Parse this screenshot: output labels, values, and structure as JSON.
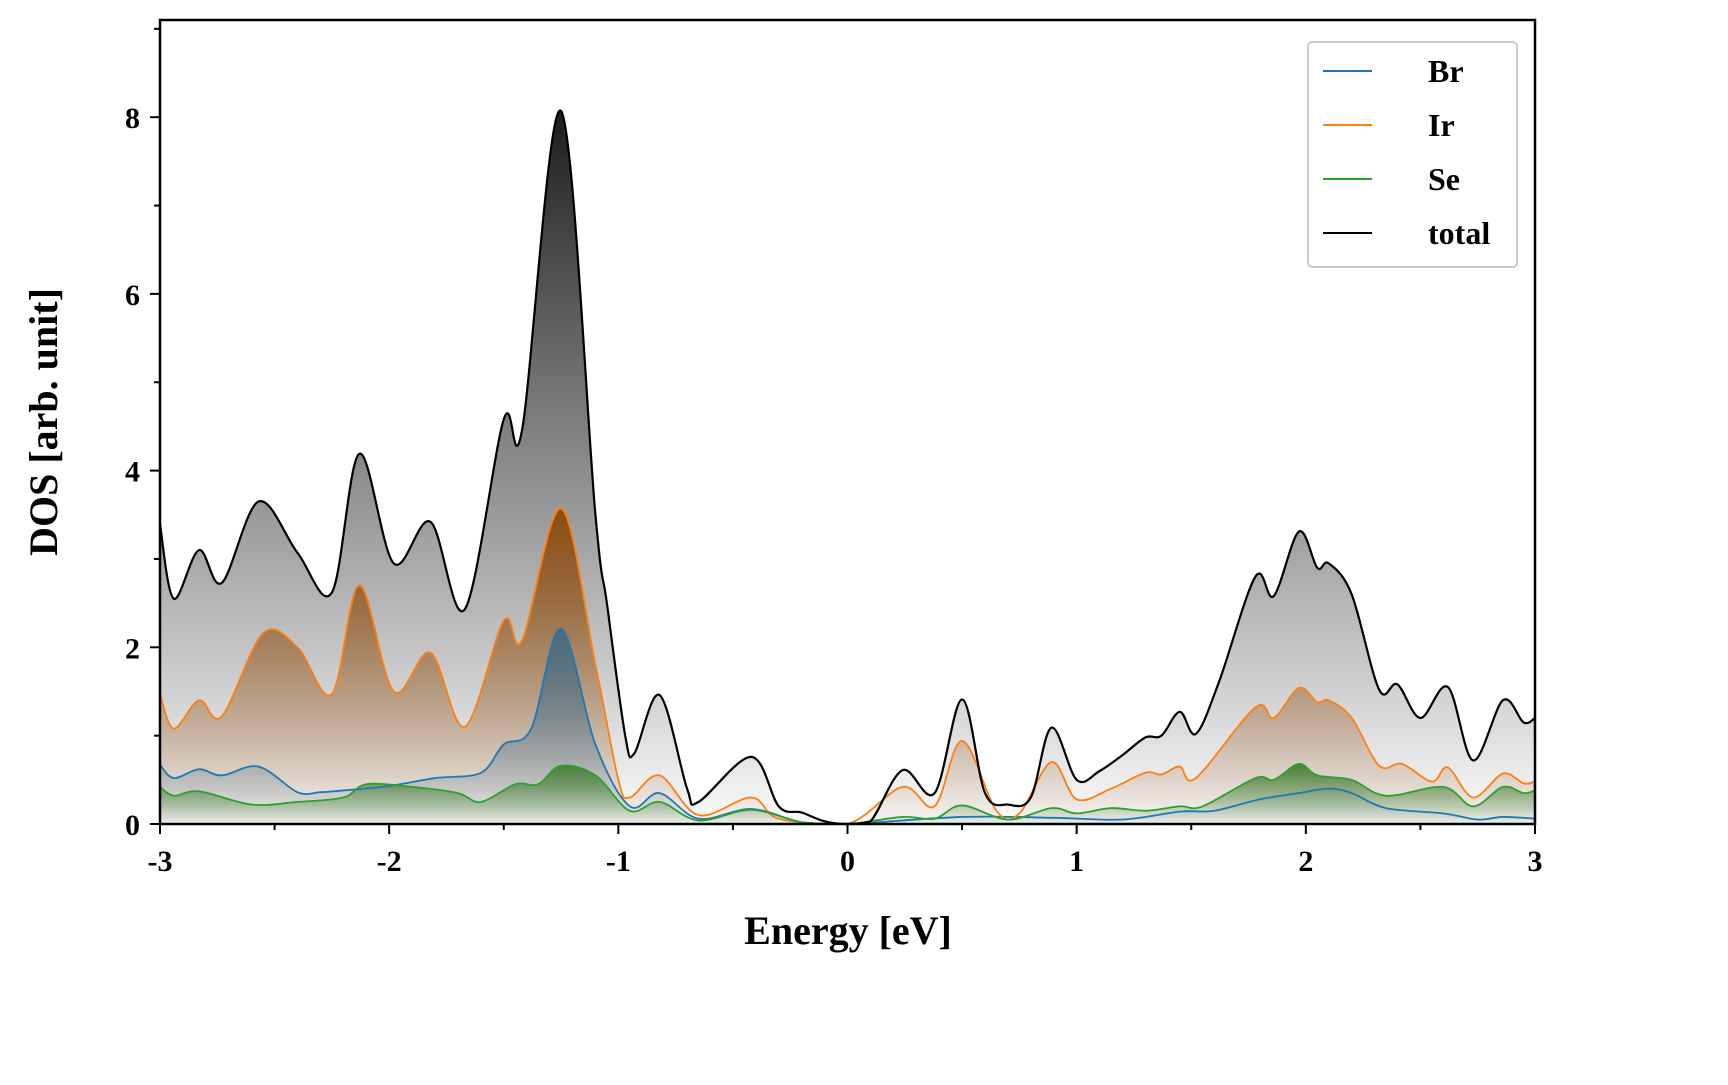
{
  "chart_data": {
    "type": "line",
    "title": "",
    "xlabel": "Energy [eV]",
    "ylabel": "DOS [arb. unit]",
    "xlim": [
      -3,
      3
    ],
    "ylim": [
      0,
      9.1
    ],
    "xticks": [
      -3,
      -2,
      -1,
      0,
      1,
      2,
      3
    ],
    "xtick_labels": [
      "-3",
      "-2",
      "-1",
      "0",
      "1",
      "2",
      "3"
    ],
    "yticks": [
      0,
      2,
      4,
      6,
      8
    ],
    "ytick_labels": [
      "0",
      "2",
      "4",
      "6",
      "8"
    ],
    "grid": false,
    "legend_position": "top-right",
    "series": [
      {
        "name": "Br",
        "color": "#1f77b4",
        "fill_color": "#3d6a85",
        "x": [
          -3,
          -2.94,
          -2.83,
          -2.73,
          -2.57,
          -2.4,
          -2.3,
          -2.2,
          -2.0,
          -1.8,
          -1.6,
          -1.5,
          -1.38,
          -1.25,
          -1.1,
          -0.95,
          -0.82,
          -0.65,
          -0.42,
          -0.2,
          0,
          0.5,
          0.9,
          1.2,
          1.45,
          1.6,
          1.8,
          1.97,
          2.1,
          2.2,
          2.35,
          2.6,
          2.75,
          2.86,
          3.0
        ],
        "y": [
          0.67,
          0.52,
          0.62,
          0.55,
          0.65,
          0.36,
          0.36,
          0.38,
          0.43,
          0.52,
          0.58,
          0.9,
          1.08,
          2.21,
          0.9,
          0.2,
          0.35,
          0.06,
          0.17,
          0.02,
          0,
          0.08,
          0.07,
          0.05,
          0.14,
          0.15,
          0.28,
          0.35,
          0.4,
          0.35,
          0.18,
          0.12,
          0.05,
          0.08,
          0.06
        ]
      },
      {
        "name": "Ir",
        "color": "#ff7f0e",
        "fill_color": "#8b4400",
        "x": [
          -3,
          -2.94,
          -2.83,
          -2.73,
          -2.55,
          -2.4,
          -2.25,
          -2.13,
          -1.98,
          -1.82,
          -1.67,
          -1.5,
          -1.42,
          -1.25,
          -1.1,
          -1.0,
          -0.95,
          -0.82,
          -0.65,
          -0.42,
          -0.3,
          0,
          0.24,
          0.38,
          0.5,
          0.65,
          0.75,
          0.89,
          1.0,
          1.15,
          1.3,
          1.37,
          1.45,
          1.52,
          1.78,
          1.86,
          1.97,
          2.05,
          2.1,
          2.2,
          2.32,
          2.42,
          2.55,
          2.62,
          2.73,
          2.86,
          2.95,
          3.0
        ],
        "y": [
          1.47,
          1.08,
          1.4,
          1.22,
          2.16,
          2.0,
          1.47,
          2.7,
          1.5,
          1.94,
          1.1,
          2.3,
          2.08,
          3.57,
          1.8,
          0.5,
          0.3,
          0.55,
          0.1,
          0.3,
          0.06,
          0,
          0.42,
          0.2,
          0.94,
          0.15,
          0.12,
          0.7,
          0.28,
          0.4,
          0.58,
          0.56,
          0.65,
          0.52,
          1.32,
          1.2,
          1.54,
          1.38,
          1.4,
          1.2,
          0.66,
          0.68,
          0.48,
          0.64,
          0.3,
          0.57,
          0.46,
          0.48
        ]
      },
      {
        "name": "Se",
        "color": "#2ca02c",
        "fill_color": "#3a7a2a",
        "x": [
          -3,
          -2.94,
          -2.83,
          -2.6,
          -2.4,
          -2.2,
          -2.1,
          -1.9,
          -1.7,
          -1.6,
          -1.45,
          -1.35,
          -1.25,
          -1.1,
          -0.95,
          -0.82,
          -0.65,
          -0.42,
          -0.2,
          0,
          0.24,
          0.38,
          0.5,
          0.7,
          0.89,
          1.0,
          1.15,
          1.3,
          1.45,
          1.55,
          1.78,
          1.86,
          1.97,
          2.05,
          2.2,
          2.35,
          2.6,
          2.73,
          2.86,
          2.95,
          3.0
        ],
        "y": [
          0.42,
          0.32,
          0.37,
          0.22,
          0.25,
          0.3,
          0.45,
          0.42,
          0.35,
          0.25,
          0.45,
          0.45,
          0.66,
          0.55,
          0.15,
          0.25,
          0.04,
          0.16,
          0.02,
          0,
          0.08,
          0.06,
          0.21,
          0.05,
          0.18,
          0.12,
          0.18,
          0.15,
          0.2,
          0.2,
          0.52,
          0.5,
          0.68,
          0.55,
          0.5,
          0.32,
          0.42,
          0.2,
          0.42,
          0.35,
          0.38
        ]
      },
      {
        "name": "total",
        "color": "#000000",
        "fill_color": "#111111",
        "x": [
          -3,
          -2.94,
          -2.83,
          -2.73,
          -2.57,
          -2.4,
          -2.25,
          -2.13,
          -1.98,
          -1.82,
          -1.67,
          -1.5,
          -1.42,
          -1.25,
          -1.1,
          -1.05,
          -0.97,
          -0.93,
          -0.82,
          -0.7,
          -0.65,
          -0.42,
          -0.3,
          -0.2,
          -0.1,
          0,
          0.1,
          0.24,
          0.38,
          0.5,
          0.6,
          0.7,
          0.8,
          0.89,
          1.0,
          1.1,
          1.2,
          1.3,
          1.37,
          1.45,
          1.52,
          1.62,
          1.78,
          1.86,
          1.97,
          2.05,
          2.1,
          2.2,
          2.32,
          2.4,
          2.5,
          2.62,
          2.73,
          2.86,
          2.95,
          3.0
        ],
        "y": [
          3.39,
          2.55,
          3.1,
          2.73,
          3.65,
          3.07,
          2.62,
          4.19,
          2.95,
          3.42,
          2.43,
          4.58,
          4.46,
          8.07,
          3.5,
          2.5,
          1.0,
          0.8,
          1.46,
          0.4,
          0.25,
          0.76,
          0.2,
          0.13,
          0.03,
          0,
          0.03,
          0.61,
          0.35,
          1.41,
          0.35,
          0.22,
          0.3,
          1.09,
          0.5,
          0.6,
          0.78,
          0.98,
          1.0,
          1.27,
          1.02,
          1.6,
          2.8,
          2.58,
          3.31,
          2.9,
          2.95,
          2.6,
          1.52,
          1.58,
          1.2,
          1.55,
          0.72,
          1.4,
          1.15,
          1.2
        ]
      }
    ]
  }
}
